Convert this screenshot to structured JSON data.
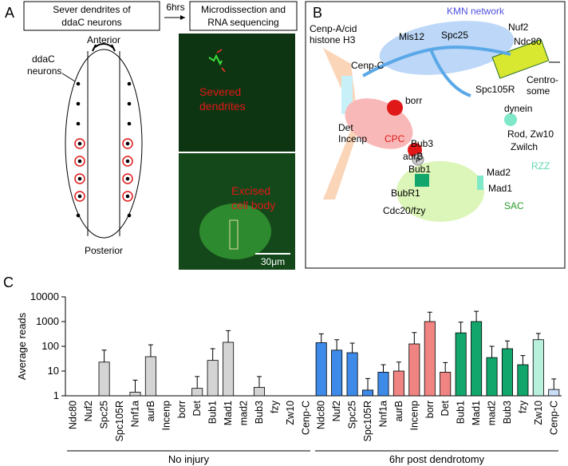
{
  "panel_a": {
    "letter": "A",
    "box_left": [
      "Sever dendrites of",
      "ddaC neurons"
    ],
    "arrow_label": "6hrs",
    "box_right": [
      "Microdissection and",
      "RNA sequencing"
    ],
    "anterior": "Anterior",
    "neurons": [
      "ddaC",
      "neurons"
    ],
    "posterior": "Posterior",
    "severed": [
      "Severed",
      "dendrites"
    ],
    "excised": [
      "Excised",
      "cell body"
    ],
    "scale": "30μm"
  },
  "panel_b": {
    "letter": "B",
    "labels": {
      "kmn": "KMN network",
      "cenpa": "Cenp-A/cid",
      "h3": "histone H3",
      "cenpc": "Cenp-C",
      "mis12": "Mis12",
      "spc25": "Spc25",
      "nuf2": "Nuf2",
      "ndc80": "Ndc80",
      "centro1": "Centro-",
      "centro2": "some",
      "spc105r": "Spc105R",
      "borr": "borr",
      "dynein": "dynein",
      "det": "Det",
      "incenp": "Incenp",
      "cpc": "CPC",
      "aurb": "aurB",
      "bub3": "Bub3",
      "rod": "Rod, Zw10",
      "zwilch": "Zwilch",
      "rzz": "RZZ",
      "bub1": "Bub1",
      "mad2": "Mad2",
      "bubr1": "BubR1",
      "mad1": "Mad1",
      "cdc20": "Cdc20/fzy",
      "sac": "SAC",
      "p": "P"
    }
  },
  "panel_c_letter": "C",
  "chart_data": {
    "type": "bar",
    "ylabel": "Average reads",
    "log_scale": true,
    "ylim": [
      1,
      10000
    ],
    "yticks": [
      1,
      10,
      100,
      1000,
      10000
    ],
    "groups": [
      {
        "label": "No injury",
        "categories": [
          "Ndc80",
          "Nuf2",
          "Spc25",
          "Spc105R",
          "Nnf1a",
          "aurB",
          "Incenp",
          "borr",
          "Det",
          "Bub1",
          "Mad1",
          "mad2",
          "Bub3",
          "fzy",
          "Zw10",
          "Cenp-C"
        ],
        "values": [
          null,
          null,
          23,
          null,
          1.4,
          38,
          null,
          null,
          2,
          27,
          145,
          null,
          2.2,
          null,
          null,
          null
        ],
        "errors": [
          null,
          null,
          47,
          null,
          2.9,
          77,
          null,
          null,
          4,
          53,
          285,
          null,
          3.8,
          null,
          null,
          null
        ],
        "color": "#d4d4d4"
      },
      {
        "label": "6hr post dendrotomy",
        "categories": [
          "Ndc80",
          "Nuf2",
          "Spc25",
          "Spc105R",
          "Nnf1a",
          "aurB",
          "Incenp",
          "borr",
          "Det",
          "Bub1",
          "Mad1",
          "mad2",
          "Bub3",
          "fzy",
          "Zw10",
          "Cenp-C"
        ],
        "values": [
          140,
          70,
          55,
          1.7,
          9,
          10,
          125,
          1000,
          9,
          350,
          1000,
          35,
          80,
          18,
          185,
          1.8
        ],
        "errors": [
          180,
          115,
          80,
          3.3,
          9,
          13,
          235,
          1400,
          13,
          600,
          1600,
          65,
          85,
          24,
          145,
          3
        ],
        "colors": [
          "#3d8ae8",
          "#3d8ae8",
          "#3d8ae8",
          "#3d8ae8",
          "#3d8ae8",
          "#f08482",
          "#f08482",
          "#f08482",
          "#f08482",
          "#12a66c",
          "#12a66c",
          "#12a66c",
          "#12a66c",
          "#12a66c",
          "#b8f0dc",
          "#c9ddf5"
        ]
      }
    ]
  }
}
